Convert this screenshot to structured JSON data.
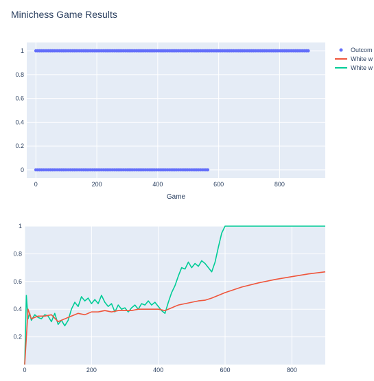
{
  "title": "Minichess Game Results",
  "legend": {
    "position": "right",
    "entries": [
      {
        "label": "Outcom",
        "color": "#636efa",
        "kind": "marker"
      },
      {
        "label": "White w",
        "color": "#ef553b",
        "kind": "line"
      },
      {
        "label": "White w",
        "color": "#00cc96",
        "kind": "line"
      }
    ]
  },
  "colors": {
    "plot_bg": "#e5ecf6",
    "grid": "#ffffff",
    "outcome": "#636efa",
    "cumulative": "#ef553b",
    "rolling": "#00cc96"
  },
  "chart_data": [
    {
      "type": "scatter",
      "xlabel": "Game",
      "ylabel": "",
      "xlim": [
        -30,
        950
      ],
      "ylim": [
        -0.07,
        1.07
      ],
      "xticks": [
        0,
        200,
        400,
        600,
        800
      ],
      "yticks": [
        0,
        0.2,
        0.4,
        0.6,
        0.8,
        1
      ],
      "grid": true,
      "series": [
        {
          "name": "Outcom",
          "segments": [
            {
              "y": 1,
              "x_start": 0,
              "x_end": 896
            },
            {
              "y": 0,
              "x_start": 0,
              "x_end": 566
            }
          ]
        }
      ]
    },
    {
      "type": "line",
      "xlabel": "",
      "ylabel": "",
      "xlim": [
        0,
        900
      ],
      "ylim": [
        0,
        1
      ],
      "xticks": [
        0,
        200,
        400,
        600,
        800
      ],
      "yticks": [
        0.2,
        0.4,
        0.6,
        0.8,
        1
      ],
      "grid": true,
      "series": [
        {
          "name": "White w",
          "x": [
            0,
            10,
            20,
            40,
            60,
            80,
            100,
            120,
            140,
            160,
            180,
            200,
            220,
            240,
            260,
            280,
            300,
            320,
            340,
            360,
            380,
            400,
            420,
            440,
            460,
            480,
            500,
            520,
            540,
            560,
            580,
            600,
            650,
            700,
            750,
            800,
            850,
            900
          ],
          "y": [
            0,
            0.4,
            0.33,
            0.35,
            0.35,
            0.36,
            0.31,
            0.33,
            0.35,
            0.37,
            0.36,
            0.38,
            0.38,
            0.39,
            0.38,
            0.39,
            0.39,
            0.39,
            0.4,
            0.4,
            0.4,
            0.4,
            0.39,
            0.41,
            0.43,
            0.44,
            0.45,
            0.46,
            0.465,
            0.48,
            0.5,
            0.52,
            0.56,
            0.59,
            0.615,
            0.635,
            0.655,
            0.67
          ]
        },
        {
          "name": "White w",
          "x": [
            0,
            5,
            10,
            15,
            20,
            30,
            40,
            50,
            60,
            70,
            80,
            90,
            100,
            110,
            120,
            130,
            140,
            150,
            160,
            170,
            180,
            190,
            200,
            210,
            220,
            230,
            240,
            250,
            260,
            270,
            280,
            290,
            300,
            310,
            320,
            330,
            340,
            350,
            360,
            370,
            380,
            390,
            400,
            410,
            420,
            430,
            440,
            450,
            460,
            470,
            480,
            490,
            500,
            510,
            520,
            530,
            540,
            550,
            560,
            570,
            580,
            590,
            600,
            610,
            620,
            650,
            700,
            750,
            800,
            850,
            900
          ],
          "y": [
            0,
            0.5,
            0.33,
            0.37,
            0.32,
            0.36,
            0.34,
            0.33,
            0.36,
            0.35,
            0.31,
            0.37,
            0.29,
            0.32,
            0.28,
            0.32,
            0.4,
            0.45,
            0.42,
            0.49,
            0.46,
            0.48,
            0.44,
            0.47,
            0.44,
            0.5,
            0.45,
            0.42,
            0.44,
            0.38,
            0.43,
            0.4,
            0.41,
            0.38,
            0.41,
            0.43,
            0.4,
            0.44,
            0.43,
            0.46,
            0.43,
            0.45,
            0.42,
            0.39,
            0.37,
            0.45,
            0.52,
            0.57,
            0.64,
            0.7,
            0.69,
            0.74,
            0.7,
            0.73,
            0.71,
            0.75,
            0.73,
            0.7,
            0.67,
            0.74,
            0.85,
            0.95,
            1,
            1,
            1,
            1,
            1,
            1,
            1,
            1,
            1
          ]
        }
      ]
    }
  ]
}
